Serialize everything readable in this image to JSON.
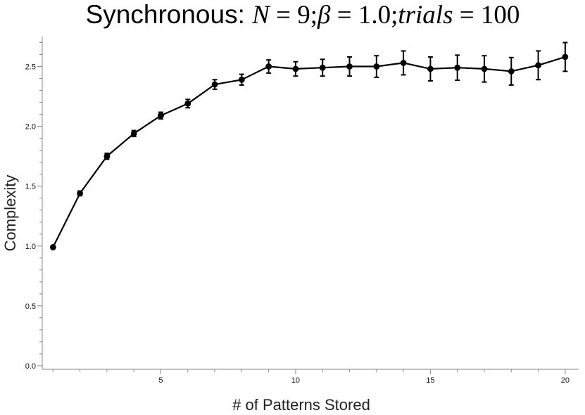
{
  "chart_data": {
    "type": "line",
    "title": {
      "prefix": "Synchronous: ",
      "n_symbol": "N",
      "n_value": "9",
      "beta_symbol": "β",
      "beta_value": "1.0",
      "trials_symbol": "trials",
      "trials_value": "100",
      "equals": " = ",
      "separator": ";"
    },
    "xlabel": "# of Patterns Stored",
    "ylabel": "Complexity",
    "xlim": [
      0.6,
      20.5
    ],
    "ylim": [
      -0.03,
      2.75
    ],
    "x_ticks": [
      {
        "value": 5,
        "label": "5"
      },
      {
        "value": 10,
        "label": "10"
      },
      {
        "value": 15,
        "label": "15"
      },
      {
        "value": 20,
        "label": "20"
      }
    ],
    "y_ticks": [
      {
        "value": 0.0,
        "label": "0.0"
      },
      {
        "value": 0.5,
        "label": "0.5"
      },
      {
        "value": 1.0,
        "label": "1.0"
      },
      {
        "value": 1.5,
        "label": "1.5"
      },
      {
        "value": 2.0,
        "label": "2.0"
      },
      {
        "value": 2.5,
        "label": "2.5"
      }
    ],
    "grid": false,
    "series": [
      {
        "x": [
          1,
          2,
          3,
          4,
          5,
          6,
          7,
          8,
          9,
          10,
          11,
          12,
          13,
          14,
          15,
          16,
          17,
          18,
          19,
          20
        ],
        "y": [
          0.99,
          1.44,
          1.75,
          1.94,
          2.09,
          2.19,
          2.35,
          2.39,
          2.5,
          2.48,
          2.49,
          2.5,
          2.5,
          2.53,
          2.48,
          2.49,
          2.48,
          2.46,
          2.51,
          2.58
        ],
        "err": [
          0.005,
          0.02,
          0.025,
          0.025,
          0.028,
          0.035,
          0.04,
          0.045,
          0.055,
          0.06,
          0.07,
          0.08,
          0.09,
          0.1,
          0.1,
          0.105,
          0.11,
          0.115,
          0.12,
          0.12
        ],
        "color": "#000000"
      }
    ]
  }
}
